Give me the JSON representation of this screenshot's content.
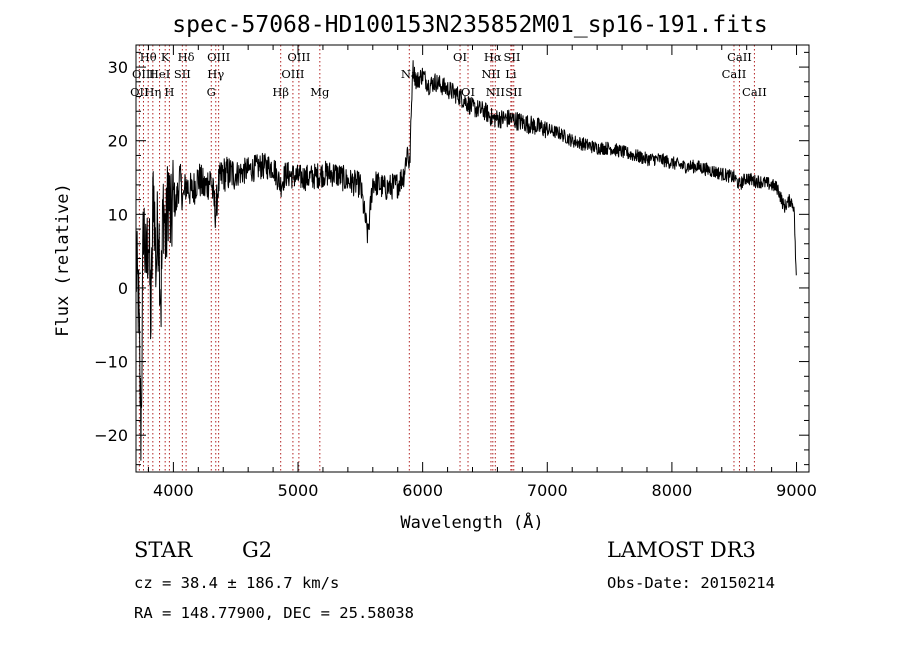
{
  "chart_data": {
    "type": "line",
    "title": "spec-57068-HD100153N235852M01_sp16-191.fits",
    "xlabel": "Wavelength (Å)",
    "ylabel": "Flux (relative)",
    "xlim": [
      3700,
      9100
    ],
    "ylim": [
      -25,
      33
    ],
    "xticks": [
      4000,
      5000,
      6000,
      7000,
      8000,
      9000
    ],
    "yticks": [
      -20,
      -10,
      0,
      10,
      20,
      30
    ],
    "grid": false,
    "series": [
      {
        "name": "flux",
        "x": [
          3700,
          3720,
          3740,
          3760,
          3780,
          3800,
          3820,
          3840,
          3860,
          3880,
          3900,
          3920,
          3940,
          3960,
          3980,
          4000,
          4020,
          4050,
          4080,
          4100,
          4150,
          4200,
          4250,
          4300,
          4340,
          4360,
          4400,
          4500,
          4600,
          4700,
          4800,
          4861,
          4900,
          5000,
          5100,
          5200,
          5300,
          5400,
          5500,
          5560,
          5600,
          5700,
          5800,
          5850,
          5880,
          5895,
          5920,
          5950,
          6000,
          6050,
          6100,
          6200,
          6300,
          6400,
          6500,
          6563,
          6600,
          6700,
          6800,
          6900,
          7000,
          7100,
          7200,
          7300,
          7400,
          7500,
          7600,
          7700,
          7800,
          7900,
          8000,
          8100,
          8200,
          8300,
          8400,
          8500,
          8542,
          8600,
          8662,
          8700,
          8800,
          8850,
          8900,
          8950,
          8980,
          9000
        ],
        "values": [
          3,
          -2,
          -20,
          10,
          2,
          8,
          -5,
          15,
          3,
          10,
          -2,
          12,
          6,
          14,
          8,
          13,
          11,
          15,
          12,
          14,
          13,
          15,
          13.5,
          15,
          10,
          14,
          15.5,
          15.5,
          16,
          16.5,
          16.5,
          14,
          15.5,
          15,
          15,
          15.5,
          15.5,
          14.5,
          14,
          7,
          14.5,
          13.5,
          14,
          15.5,
          19,
          16,
          30,
          28,
          29,
          27.5,
          28,
          27,
          26,
          24.5,
          24,
          23,
          23,
          23,
          22.5,
          22,
          21.5,
          21,
          20,
          19.5,
          19,
          19,
          18.5,
          18,
          17.5,
          17.5,
          17,
          16.5,
          16.5,
          16,
          15.5,
          15,
          14,
          15,
          14.5,
          14.5,
          14,
          13.5,
          11,
          12,
          11,
          0
        ]
      }
    ],
    "lines": [
      {
        "name": "OII",
        "wavelength": 3727,
        "row": 2
      },
      {
        "name": "Hθ",
        "wavelength": 3798,
        "row": 0
      },
      {
        "name": "OIII",
        "wavelength": 3760,
        "row": 1
      },
      {
        "name": "Hη",
        "wavelength": 3835,
        "row": 2
      },
      {
        "name": "K",
        "wavelength": 3934,
        "row": 0
      },
      {
        "name": "HeI",
        "wavelength": 3889,
        "row": 1
      },
      {
        "name": "H",
        "wavelength": 3968,
        "row": 2
      },
      {
        "name": "SII",
        "wavelength": 4072,
        "row": 1
      },
      {
        "name": "Hδ",
        "wavelength": 4102,
        "row": 0
      },
      {
        "name": "OIII",
        "wavelength": 4363,
        "row": 0
      },
      {
        "name": "Hγ",
        "wavelength": 4340,
        "row": 1
      },
      {
        "name": "G",
        "wavelength": 4304,
        "row": 2
      },
      {
        "name": "Hβ",
        "wavelength": 4861,
        "row": 2
      },
      {
        "name": "OIII",
        "wavelength": 5007,
        "row": 0
      },
      {
        "name": "OIII",
        "wavelength": 4959,
        "row": 1
      },
      {
        "name": "Mg",
        "wavelength": 5175,
        "row": 2
      },
      {
        "name": "Na",
        "wavelength": 5893,
        "row": 1
      },
      {
        "name": "OI",
        "wavelength": 6300,
        "row": 0
      },
      {
        "name": "OI",
        "wavelength": 6364,
        "row": 2
      },
      {
        "name": "Hα",
        "wavelength": 6563,
        "row": 0
      },
      {
        "name": "NII",
        "wavelength": 6548,
        "row": 1
      },
      {
        "name": "NII",
        "wavelength": 6583,
        "row": 2
      },
      {
        "name": "SII",
        "wavelength": 6717,
        "row": 0
      },
      {
        "name": "Li",
        "wavelength": 6708,
        "row": 1
      },
      {
        "name": "SII",
        "wavelength": 6731,
        "row": 2
      },
      {
        "name": "CaII",
        "wavelength": 8542,
        "row": 0
      },
      {
        "name": "CaII",
        "wavelength": 8498,
        "row": 1
      },
      {
        "name": "CaII",
        "wavelength": 8662,
        "row": 2
      }
    ]
  },
  "info": {
    "object_class": "STAR",
    "subclass": "G2",
    "survey": "LAMOST DR3",
    "redshift": "cz = 38.4 ± 186.7 km/s",
    "obs_date": "Obs-Date: 20150214",
    "coords": "RA = 148.77900, DEC =  25.58038"
  },
  "colors": {
    "line_marker": "#b22222",
    "spectrum": "#000000"
  }
}
